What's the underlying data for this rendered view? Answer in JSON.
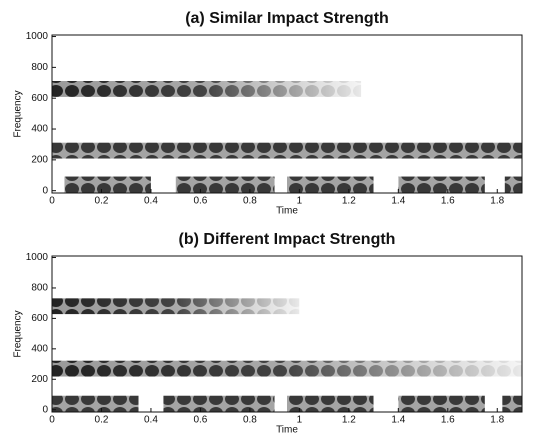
{
  "chart_data": [
    {
      "type": "spectrogram",
      "title": "(a) Similar Impact Strength",
      "x_label": "Time",
      "y_label": "Frequency",
      "xlim": [
        0,
        1.9
      ],
      "ylim": [
        -15,
        1010
      ],
      "xticks": [
        0,
        0.2,
        0.4,
        0.6,
        0.8,
        1,
        1.2,
        1.4,
        1.6,
        1.8
      ],
      "yticks": [
        0,
        200,
        400,
        600,
        800,
        1000
      ],
      "bands": [
        {
          "y": 660,
          "x": [
            0,
            1.25
          ],
          "fade": true
        },
        {
          "y": 260,
          "x": [
            0,
            1.9
          ],
          "fade": false
        },
        {
          "y": 40,
          "x": [
            0.05,
            0.4
          ],
          "fade": false
        },
        {
          "y": 40,
          "x": [
            0.5,
            0.9
          ],
          "fade": false
        },
        {
          "y": 40,
          "x": [
            0.95,
            1.3
          ],
          "fade": false
        },
        {
          "y": 40,
          "x": [
            1.4,
            1.75
          ],
          "fade": false
        },
        {
          "y": 40,
          "x": [
            1.83,
            1.9
          ],
          "fade": false
        }
      ]
    },
    {
      "type": "spectrogram",
      "title": "(b) Different Impact Strength",
      "x_label": "Time",
      "y_label": "Frequency",
      "xlim": [
        0,
        1.9
      ],
      "ylim": [
        -15,
        1010
      ],
      "xticks": [
        0,
        0.2,
        0.4,
        0.6,
        0.8,
        1,
        1.2,
        1.4,
        1.6,
        1.8
      ],
      "yticks": [
        0,
        200,
        400,
        600,
        800,
        1000
      ],
      "bands": [
        {
          "y": 680,
          "x": [
            0,
            1.0
          ],
          "fade": true
        },
        {
          "y": 270,
          "x": [
            0,
            1.9
          ],
          "fade": true
        },
        {
          "y": 40,
          "x": [
            0,
            0.35
          ],
          "fade": false
        },
        {
          "y": 40,
          "x": [
            0.45,
            0.9
          ],
          "fade": false
        },
        {
          "y": 40,
          "x": [
            0.95,
            1.3
          ],
          "fade": false
        },
        {
          "y": 40,
          "x": [
            1.4,
            1.75
          ],
          "fade": false
        },
        {
          "y": 40,
          "x": [
            1.82,
            1.9
          ],
          "fade": false
        }
      ]
    }
  ]
}
